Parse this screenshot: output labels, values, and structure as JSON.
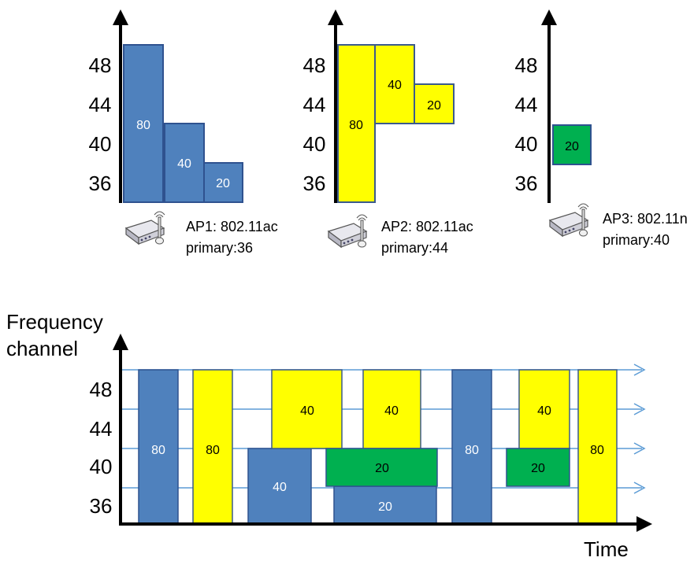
{
  "colors": {
    "blue": "#4f81bd",
    "blue_border": "#2f528f",
    "yellow": "#ffff00",
    "yellow_border": "#3b5a8c",
    "green": "#00b050",
    "green_border": "#2f528f",
    "line_blue": "#5b9bd5"
  },
  "top": {
    "channels": [
      "48",
      "44",
      "40",
      "36"
    ],
    "aps": [
      {
        "name_line": "AP1: 802.11ac",
        "primary_line": "primary:36",
        "icon": "wireless-router-icon",
        "bars": [
          {
            "label": "80",
            "color": "blue"
          },
          {
            "label": "40",
            "color": "blue"
          },
          {
            "label": "20",
            "color": "blue"
          }
        ]
      },
      {
        "name_line": "AP2: 802.11ac",
        "primary_line": "primary:44",
        "icon": "wireless-router-icon",
        "bars": [
          {
            "label": "80",
            "color": "yellow"
          },
          {
            "label": "40",
            "color": "yellow"
          },
          {
            "label": "20",
            "color": "yellow"
          }
        ]
      },
      {
        "name_line": "AP3: 802.11n",
        "primary_line": "primary:40",
        "icon": "wireless-router-icon",
        "bars": [
          {
            "label": "20",
            "color": "green"
          }
        ]
      }
    ]
  },
  "bottom": {
    "y_axis_title_line1": "Frequency",
    "y_axis_title_line2": "channel",
    "x_axis_title": "Time",
    "channels": [
      "48",
      "44",
      "40",
      "36"
    ],
    "blocks": [
      {
        "label": "80",
        "color": "blue"
      },
      {
        "label": "80",
        "color": "yellow"
      },
      {
        "label": "40",
        "color": "blue"
      },
      {
        "label": "40",
        "color": "yellow"
      },
      {
        "label": "20",
        "color": "blue"
      },
      {
        "label": "40",
        "color": "yellow"
      },
      {
        "label": "20",
        "color": "green"
      },
      {
        "label": "80",
        "color": "blue"
      },
      {
        "label": "40",
        "color": "yellow"
      },
      {
        "label": "20",
        "color": "green"
      },
      {
        "label": "80",
        "color": "yellow"
      }
    ]
  }
}
